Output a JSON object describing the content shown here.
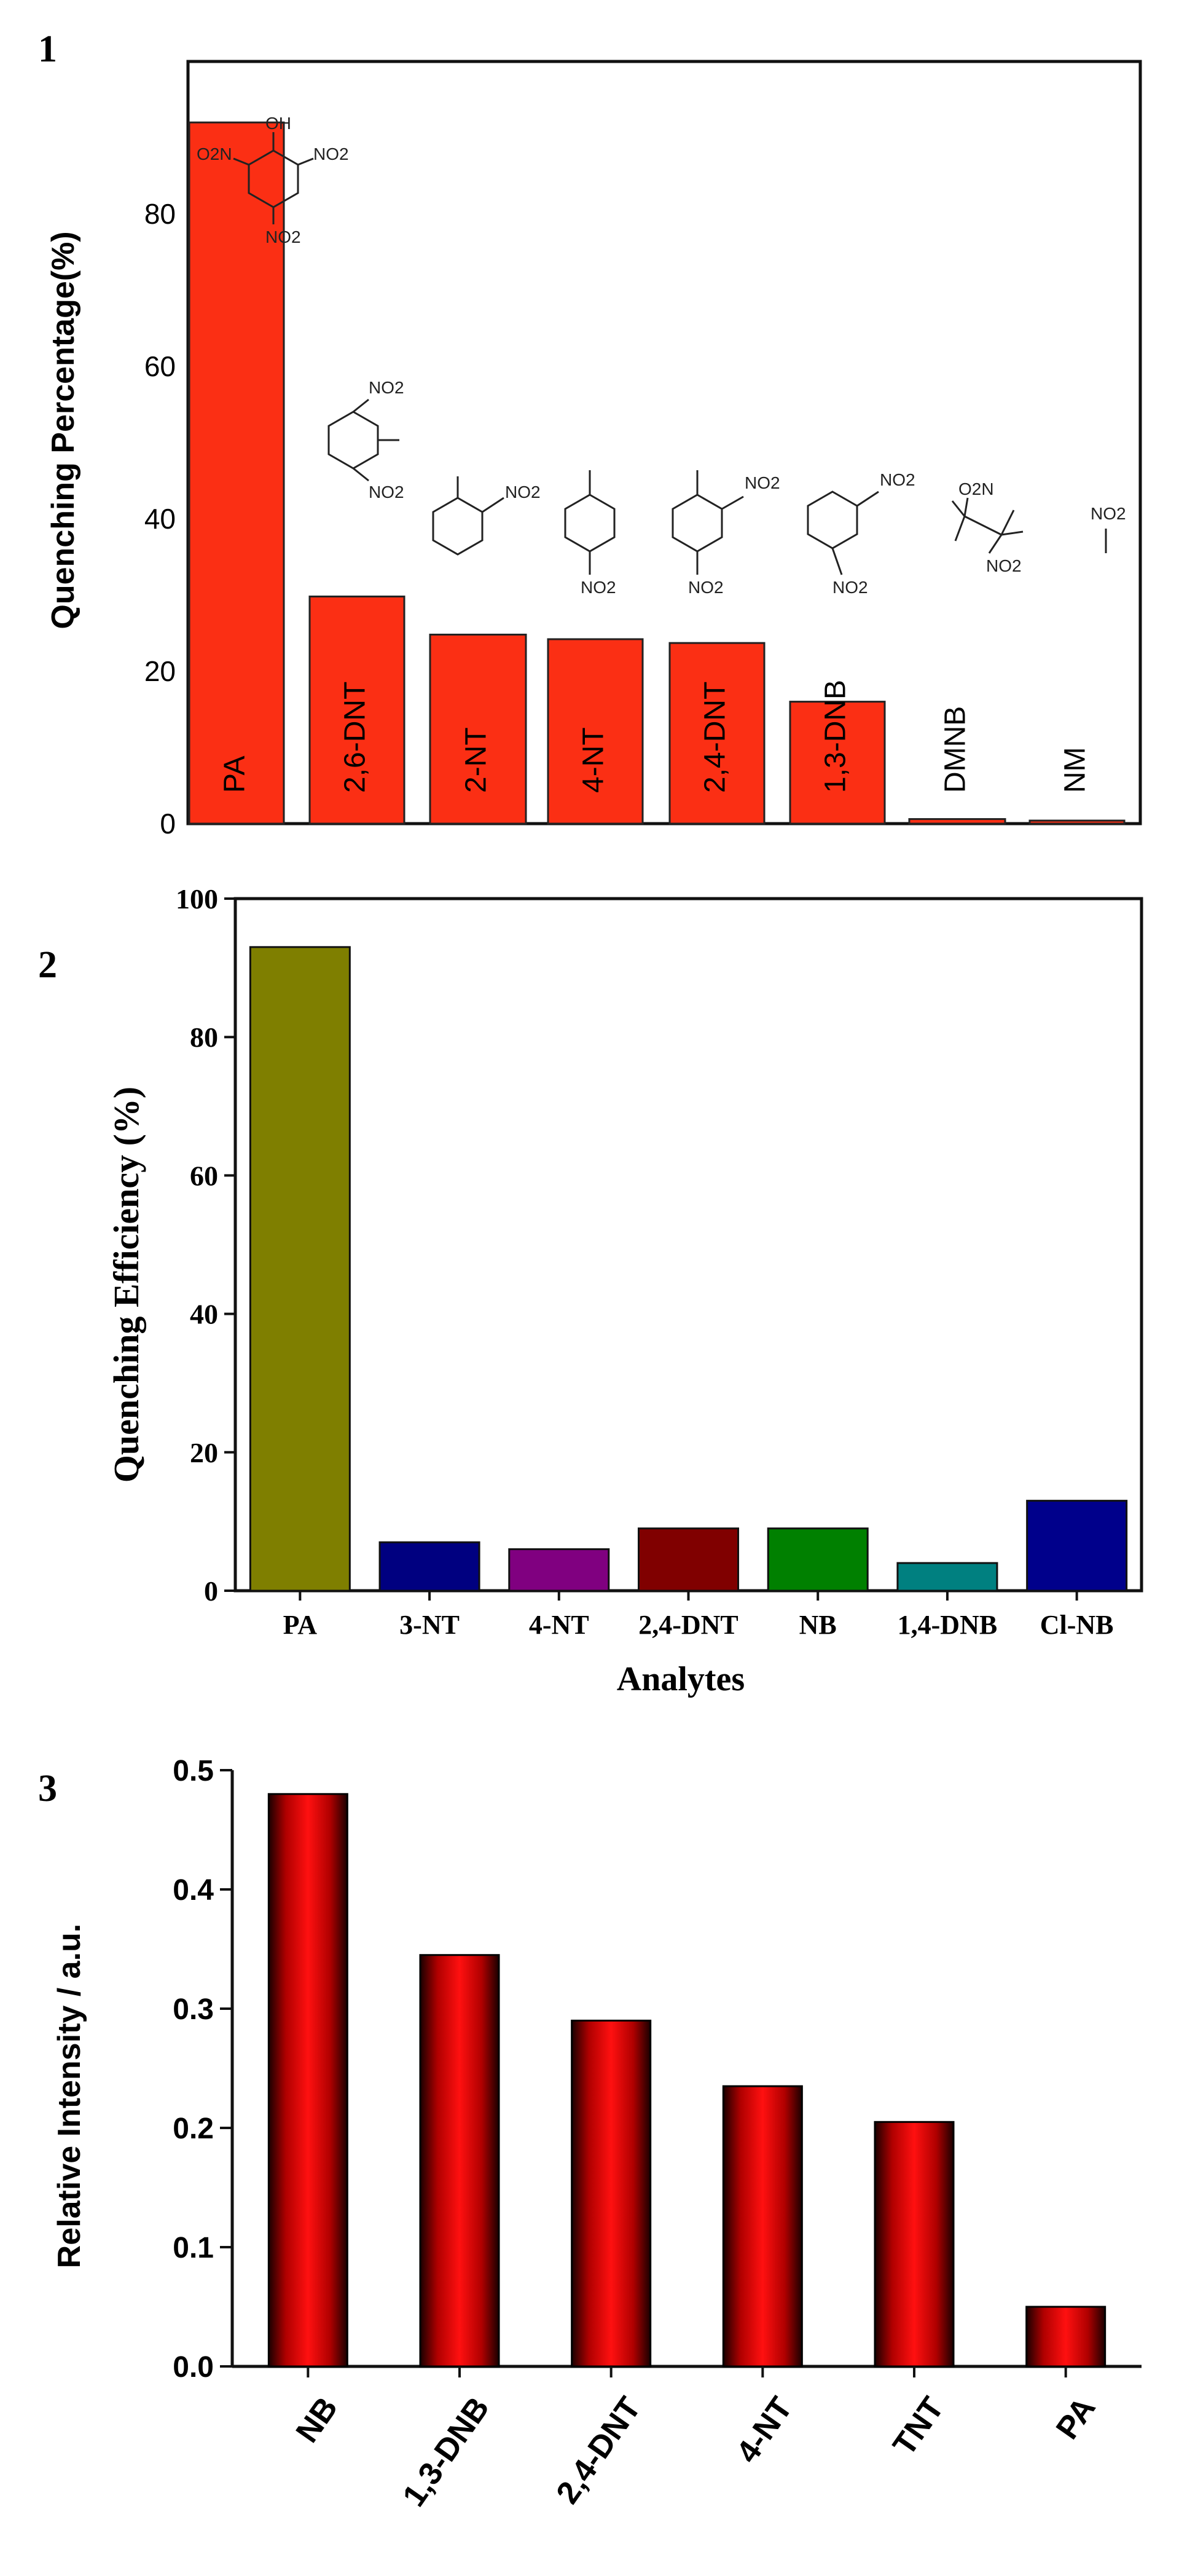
{
  "panels": [
    {
      "number": "1"
    },
    {
      "number": "2"
    },
    {
      "number": "3"
    }
  ],
  "chart_data": [
    {
      "type": "bar",
      "panel": "1",
      "ylabel": "Quenching Percentage(%)",
      "xlabel": "",
      "ylim": [
        0,
        100
      ],
      "yticks": [
        0,
        20,
        40,
        60,
        80
      ],
      "categories": [
        "PA",
        "2,6-DNT",
        "2-NT",
        "4-NT",
        "2,4-DNT",
        "1,3-DNB",
        "DMNB",
        "NM"
      ],
      "values": [
        92,
        29.8,
        24.8,
        24.2,
        23.7,
        16,
        0.6,
        0.4
      ],
      "color": "#fb2f14",
      "structure_labels": {
        "PA": [
          "OH",
          "O2N",
          "NO2",
          "NO2"
        ],
        "2,6-DNT": [
          "NO2",
          "NO2"
        ],
        "2-NT": [
          "NO2"
        ],
        "4-NT": [
          "NO2"
        ],
        "2,4-DNT": [
          "NO2",
          "NO2"
        ],
        "1,3-DNB": [
          "NO2",
          "NO2"
        ],
        "DMNB": [
          "O2N",
          "NO2"
        ],
        "NM": [
          "NO2"
        ]
      }
    },
    {
      "type": "bar",
      "panel": "2",
      "ylabel": "Quenching Efficiency (%)",
      "xlabel": "Analytes",
      "ylim": [
        0,
        100
      ],
      "yticks": [
        0,
        20,
        40,
        60,
        80,
        100
      ],
      "categories": [
        "PA",
        "3-NT",
        "4-NT",
        "2,4-DNT",
        "NB",
        "1,4-DNB",
        "Cl-NB"
      ],
      "values": [
        93,
        7,
        6,
        9,
        9,
        4,
        13
      ],
      "colors": [
        "#7f7f00",
        "#000080",
        "#800080",
        "#800000",
        "#008000",
        "#008080",
        "#00008b"
      ]
    },
    {
      "type": "bar",
      "panel": "3",
      "ylabel": "Relative Intensity / a.u.",
      "xlabel": "",
      "ylim": [
        0,
        0.5
      ],
      "yticks": [
        "0.0",
        "0.1",
        "0.2",
        "0.3",
        "0.4",
        "0.5"
      ],
      "categories": [
        "NB",
        "1,3-DNB",
        "2,4-DNT",
        "4-NT",
        "TNT",
        "PA"
      ],
      "values": [
        0.48,
        0.345,
        0.29,
        0.235,
        0.205,
        0.05
      ],
      "color": "#ff0000"
    }
  ]
}
